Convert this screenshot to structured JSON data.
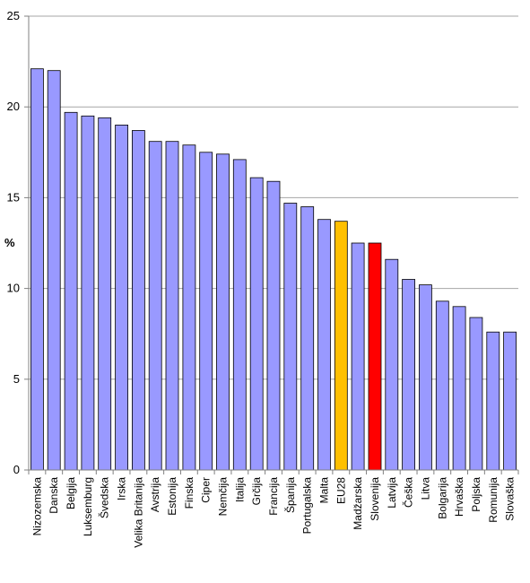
{
  "chart_data": {
    "type": "bar",
    "ylabel": "%",
    "xlabel": "",
    "title": "",
    "ylim": [
      0,
      25
    ],
    "yticks": [
      0,
      5,
      10,
      15,
      20,
      25
    ],
    "grid": true,
    "legend": "none",
    "colors": {
      "default": "#9999ff",
      "highlight_eu": "#ffc000",
      "highlight_si": "#ff0000",
      "grid": "#a6a6a6",
      "axis": "#808080"
    },
    "categories": [
      "Nizozemska",
      "Danska",
      "Belgija",
      "Luksemburg",
      "Švedska",
      "Irska",
      "Velika Britanija",
      "Avstrija",
      "Estonija",
      "Finska",
      "Ciper",
      "Nemčija",
      "Italija",
      "Grčija",
      "Francija",
      "Španija",
      "Portugalska",
      "Malta",
      "EU28",
      "Madžarska",
      "Slovenija",
      "Latvija",
      "Češka",
      "Litva",
      "Bolgarija",
      "Hrvaška",
      "Poljska",
      "Romunija",
      "Slovaška"
    ],
    "values": [
      22.1,
      22.0,
      19.7,
      19.5,
      19.4,
      19.0,
      18.7,
      18.1,
      18.1,
      17.9,
      17.5,
      17.4,
      17.1,
      16.1,
      15.9,
      14.7,
      14.5,
      13.8,
      13.7,
      12.5,
      12.5,
      11.6,
      10.5,
      10.2,
      9.3,
      9.0,
      8.4,
      7.6,
      7.6
    ],
    "highlights": {
      "EU28": "#ffc000",
      "Slovenija": "#ff0000"
    }
  }
}
